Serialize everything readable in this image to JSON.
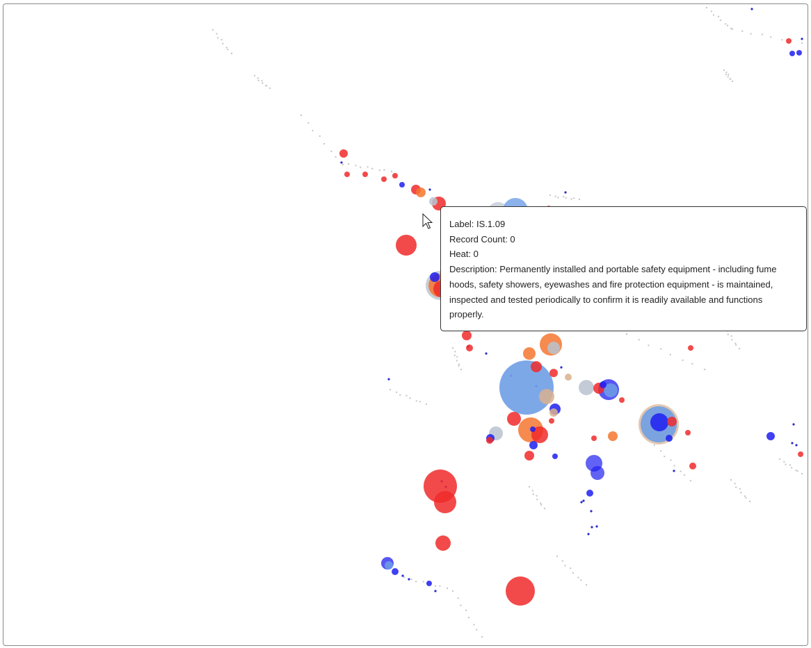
{
  "tooltip": {
    "label_line": "Label: IS.1.09",
    "record_count_line": "Record Count: 0",
    "heat_line": "Heat: 0",
    "description_line": "Description: Permanently installed and portable safety equipment - including fume hoods, safety showers, eyewashes and fire protection equipment - is maintained, inspected and tested periodically to confirm it is readily available and functions properly."
  },
  "palette": {
    "red": "#f02a2a",
    "blue": "#1f1ff0",
    "light_blue": "#6f9fe6",
    "orange": "#f57530",
    "grey": "#b9c3cf",
    "tan": "#d9b08e",
    "dot": "#c8c8c8",
    "tiny_blue": "#2a2ad0"
  }
}
